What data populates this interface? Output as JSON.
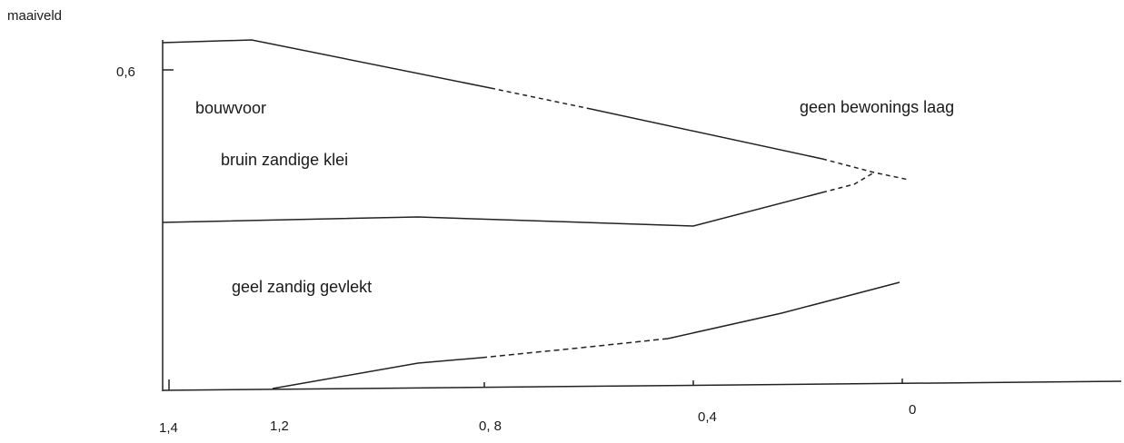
{
  "labels": {
    "maaiveld": "maaiveld",
    "depth": "0,6",
    "bouwvoor": "bouwvoor",
    "klei": "bruin zandige klei",
    "geen": "geen bewonings laag",
    "geel": "geel zandig gevlekt"
  },
  "ticks": [
    "1,4",
    "1,2",
    "0, 8",
    "0,4",
    "0"
  ]
}
